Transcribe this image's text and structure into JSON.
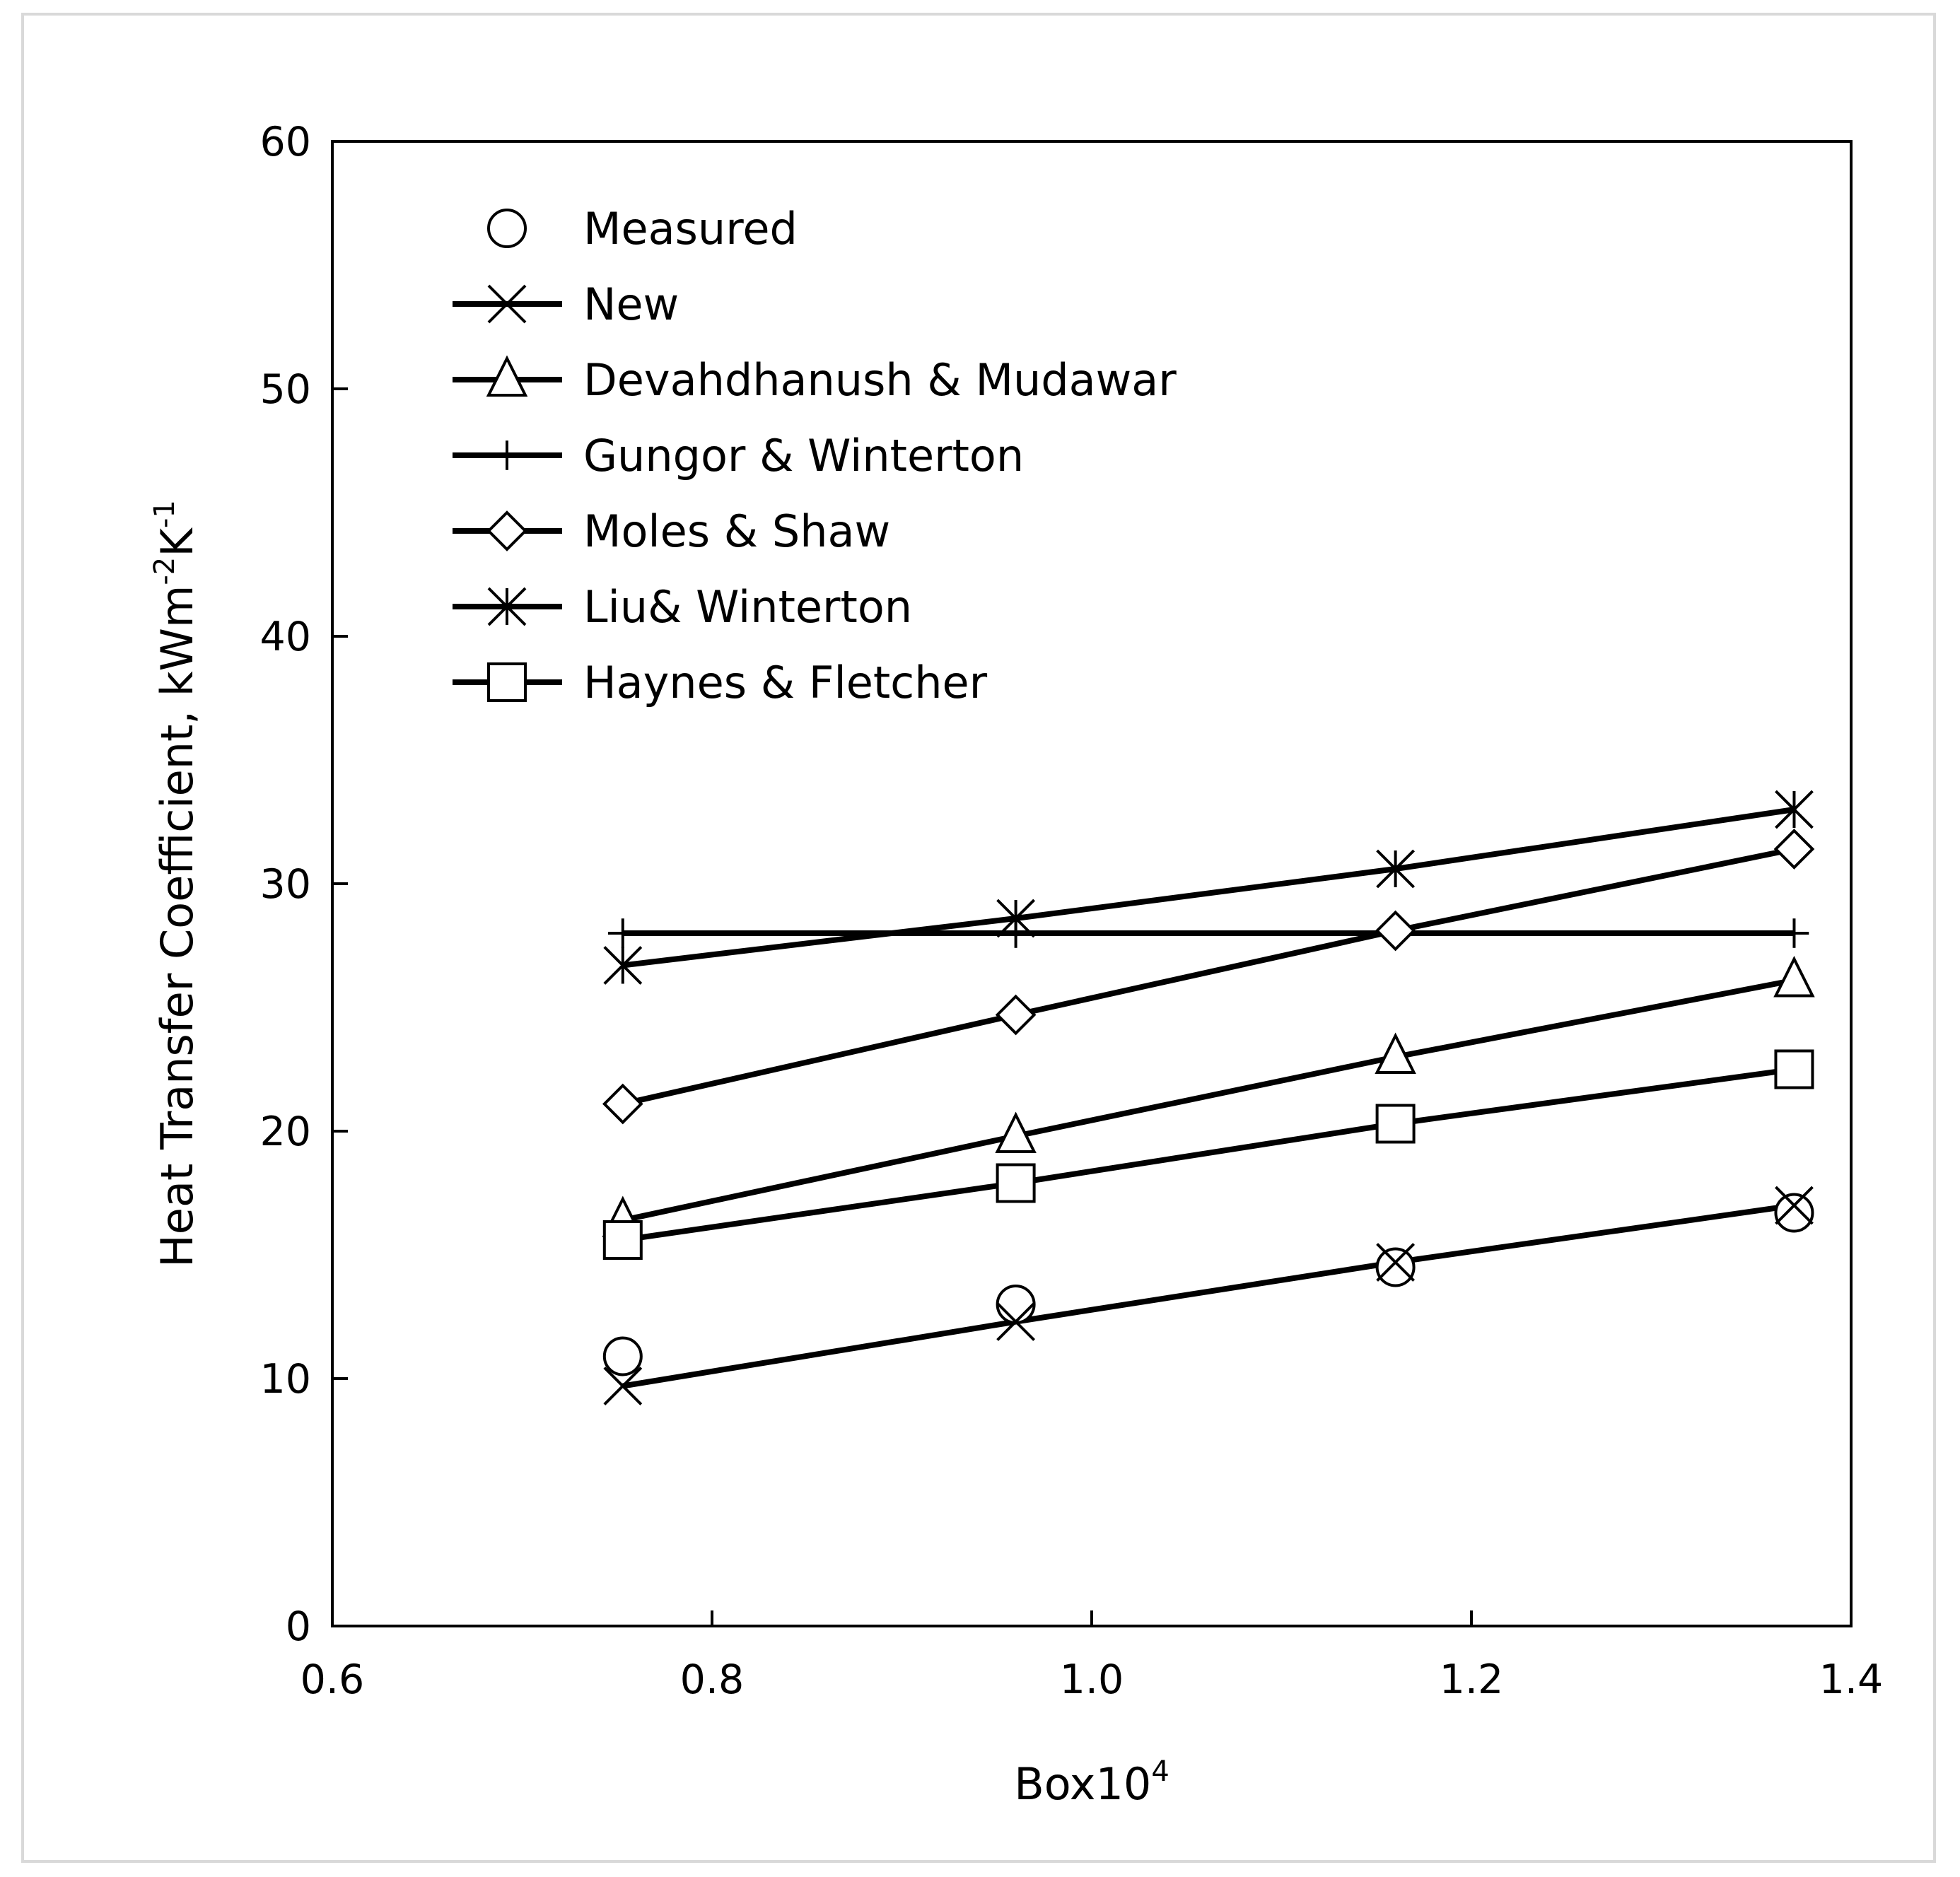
{
  "chart_data": {
    "type": "line",
    "title": "",
    "xlabel": "Box10",
    "xlabel_superscript": "4",
    "ylabel": "Heat Transfer Coefficient, kWm",
    "ylabel_sup1": "-2",
    "ylabel_mid": "K",
    "ylabel_sup2": "-1",
    "xlim": [
      0.6,
      1.4
    ],
    "ylim": [
      0,
      60
    ],
    "xticks": [
      0.6,
      0.8,
      1.0,
      1.2,
      1.4
    ],
    "xtick_labels": [
      "0.6",
      "0.8",
      "1.0",
      "1.2",
      "1.4"
    ],
    "yticks": [
      0,
      10,
      20,
      30,
      40,
      50,
      60
    ],
    "ytick_labels": [
      "0",
      "10",
      "20",
      "30",
      "40",
      "50",
      "60"
    ],
    "grid": false,
    "legend_position": "top-left",
    "x": [
      0.753,
      0.96,
      1.16,
      1.37
    ],
    "series": [
      {
        "name": "Measured",
        "marker": "circle",
        "line": false,
        "values": [
          10.9,
          13.0,
          14.5,
          16.7
        ]
      },
      {
        "name": "New",
        "marker": "x",
        "line": true,
        "values": [
          9.7,
          12.3,
          14.7,
          17.0
        ]
      },
      {
        "name": "Devahdhanush & Mudawar",
        "marker": "triangle",
        "line": true,
        "values": [
          16.4,
          19.8,
          23.0,
          26.1
        ]
      },
      {
        "name": "Gungor & Winterton",
        "marker": "plus",
        "line": true,
        "values": [
          28.0,
          28.0,
          28.0,
          28.0
        ]
      },
      {
        "name": "Moles & Shaw",
        "marker": "diamond",
        "line": true,
        "values": [
          21.1,
          24.7,
          28.1,
          31.4
        ]
      },
      {
        "name": "Liu& Winterton",
        "marker": "star",
        "line": true,
        "values": [
          26.7,
          28.6,
          30.6,
          33.0
        ]
      },
      {
        "name": "Haynes & Fletcher",
        "marker": "square",
        "line": true,
        "values": [
          15.6,
          17.9,
          20.3,
          22.5
        ]
      }
    ]
  }
}
